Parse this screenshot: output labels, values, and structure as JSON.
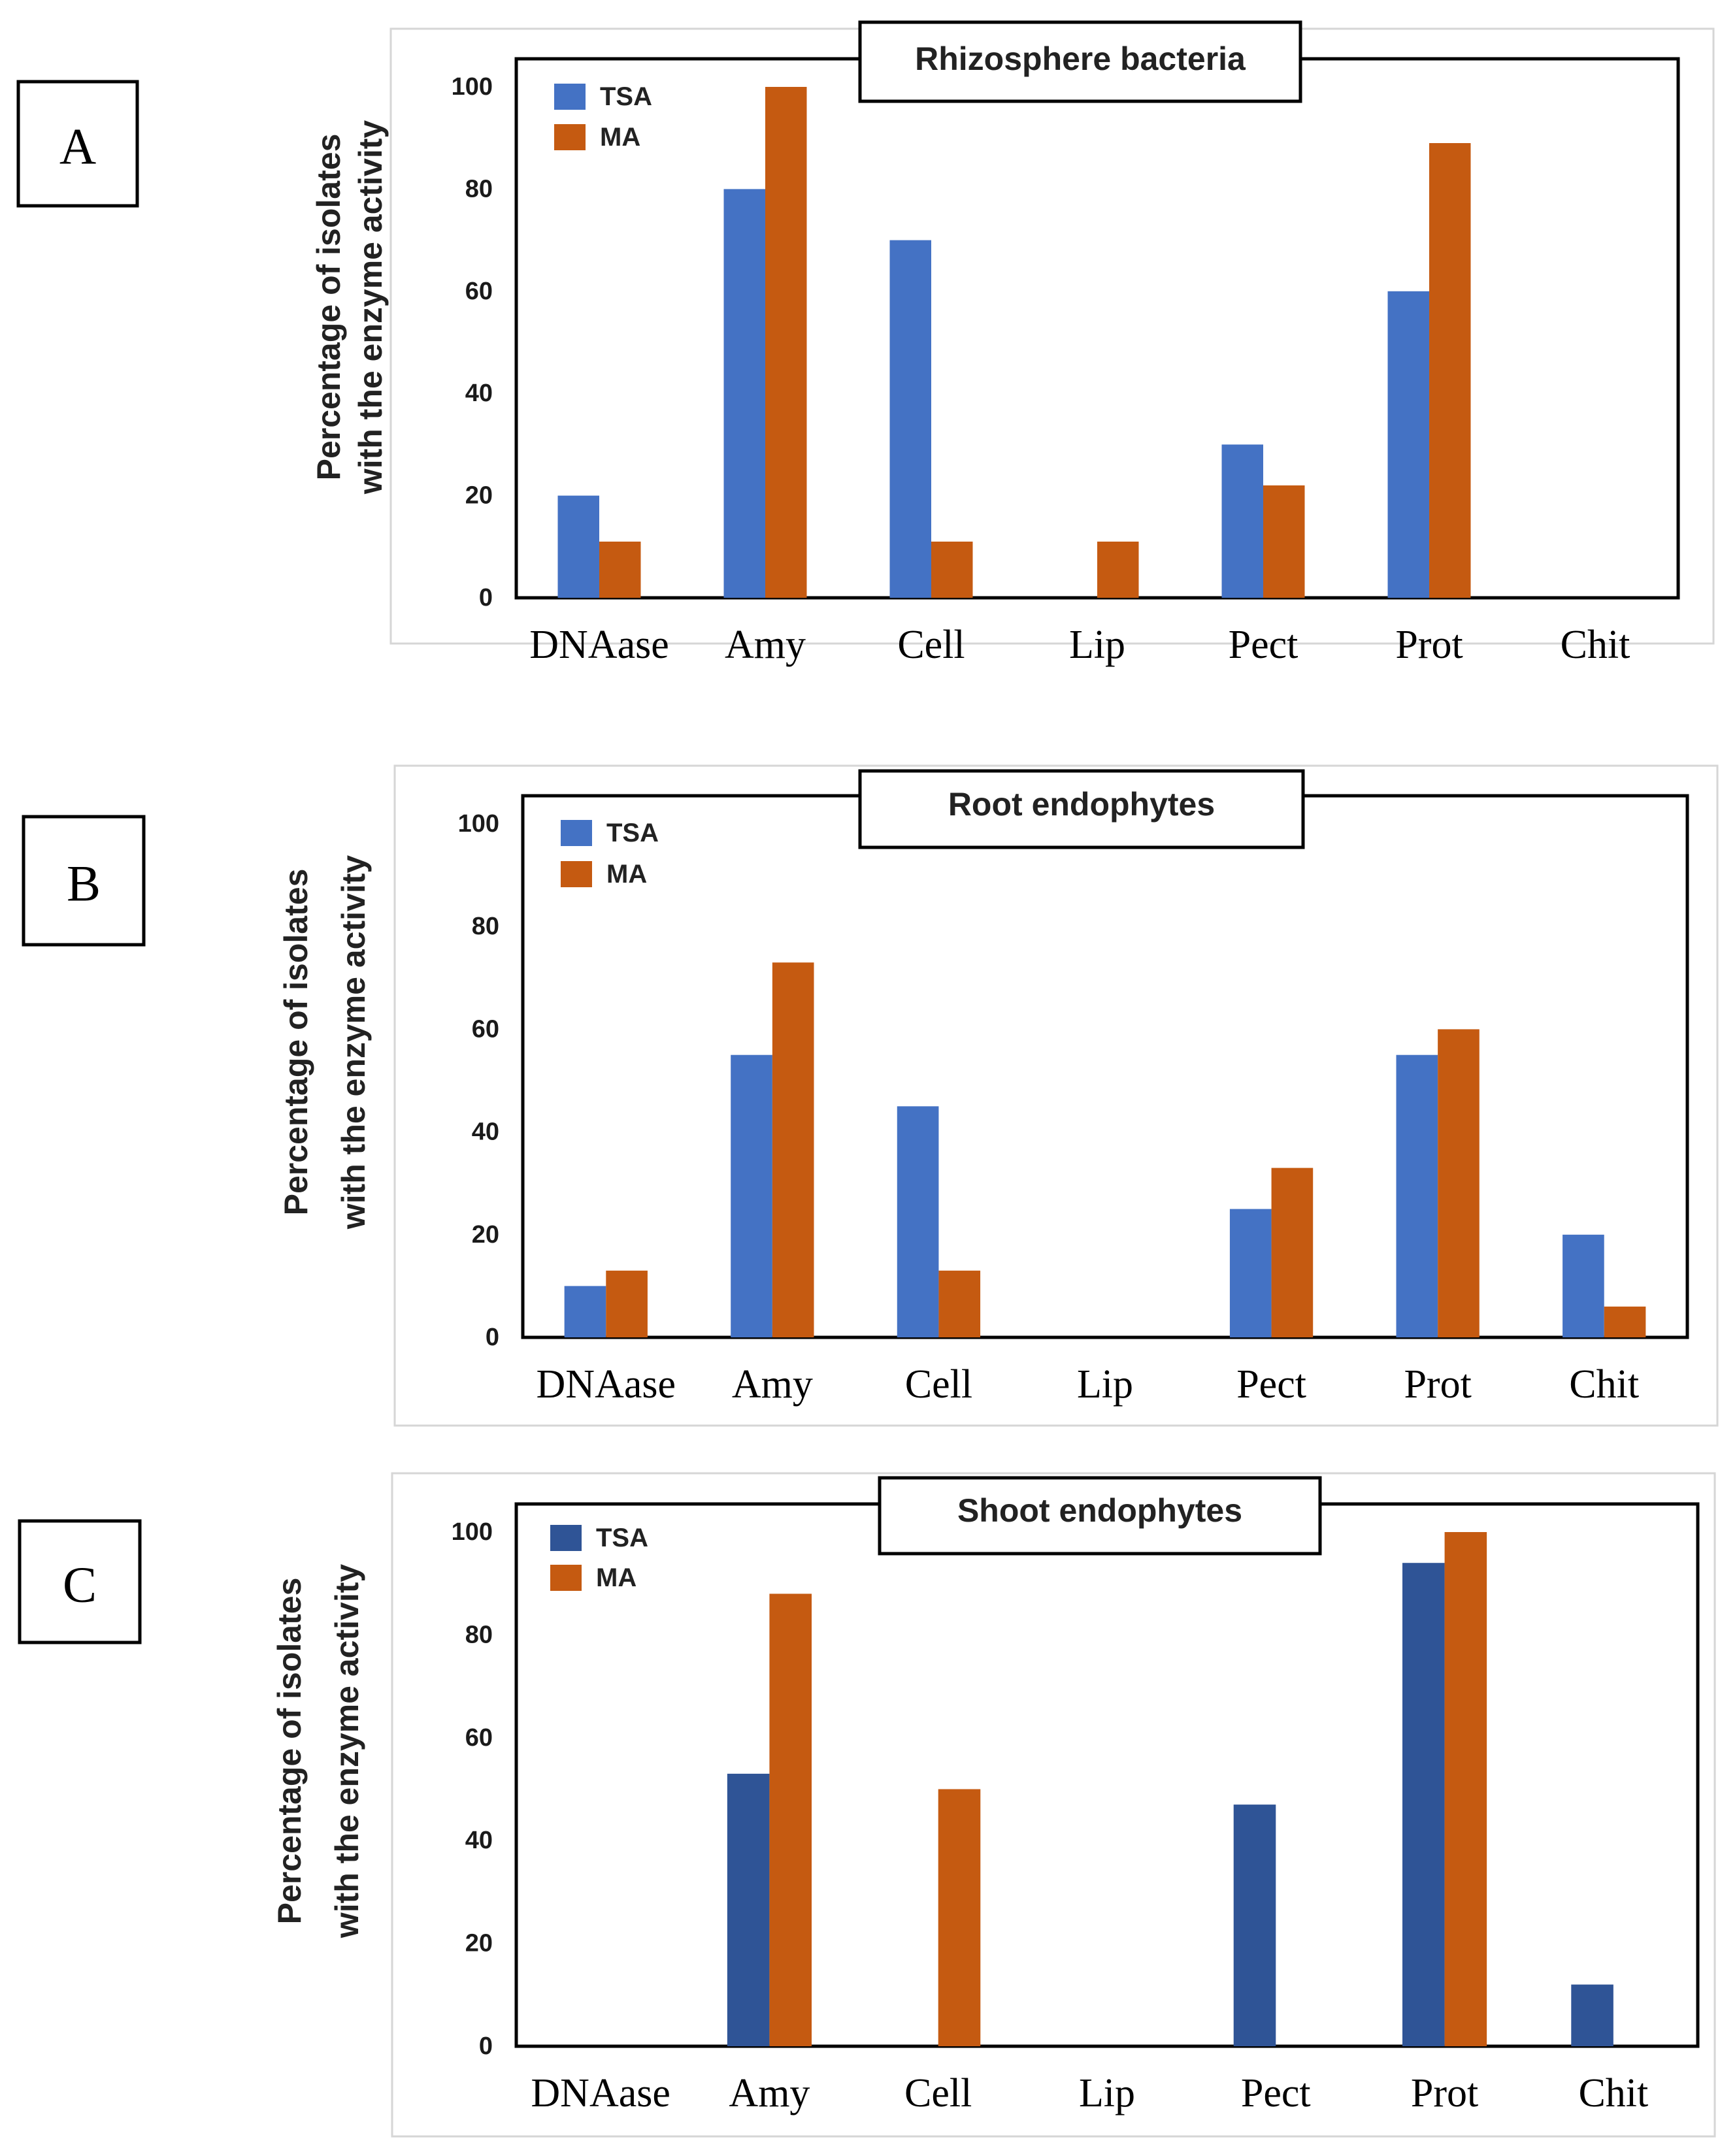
{
  "colors": {
    "tsa": "#4472C4",
    "tsa_dark": "#2F5496",
    "ma": "#C55A11"
  },
  "chart_data": [
    {
      "type": "bar",
      "panel": "A",
      "title": "Rhizosphere bacteria",
      "ylabel_line1": "Percentage of isolates",
      "ylabel_line2": "with the enzyme activity",
      "ylim": [
        0,
        100
      ],
      "yticks": [
        "0",
        "20",
        "40",
        "60",
        "80",
        "100"
      ],
      "categories": [
        "DNAase",
        "Amy",
        "Cell",
        "Lip",
        "Pect",
        "Prot",
        "Chit"
      ],
      "series": [
        {
          "name": "TSA",
          "values": [
            20,
            80,
            70,
            0,
            30,
            60,
            0
          ]
        },
        {
          "name": "MA",
          "values": [
            11,
            100,
            11,
            11,
            22,
            89,
            0
          ]
        }
      ]
    },
    {
      "type": "bar",
      "panel": "B",
      "title": "Root endophytes",
      "ylabel_line1": "Percentage of isolates",
      "ylabel_line2": "with the enzyme activity",
      "ylim": [
        0,
        100
      ],
      "yticks": [
        "0",
        "20",
        "40",
        "60",
        "80",
        "100"
      ],
      "categories": [
        "DNAase",
        "Amy",
        "Cell",
        "Lip",
        "Pect",
        "Prot",
        "Chit"
      ],
      "series": [
        {
          "name": "TSA",
          "values": [
            10,
            55,
            45,
            0,
            25,
            55,
            20
          ]
        },
        {
          "name": "MA",
          "values": [
            13,
            73,
            13,
            0,
            33,
            60,
            6
          ]
        }
      ]
    },
    {
      "type": "bar",
      "panel": "C",
      "title": "Shoot endophytes",
      "ylabel_line1": "Percentage of isolates",
      "ylabel_line2": "with the enzyme activity",
      "ylim": [
        0,
        100
      ],
      "yticks": [
        "0",
        "20",
        "40",
        "60",
        "80",
        "100"
      ],
      "categories": [
        "DNAase",
        "Amy",
        "Cell",
        "Lip",
        "Pect",
        "Prot",
        "Chit"
      ],
      "series": [
        {
          "name": "TSA",
          "values": [
            0,
            53,
            0,
            0,
            47,
            94,
            12
          ]
        },
        {
          "name": "MA",
          "values": [
            0,
            88,
            50,
            0,
            0,
            100,
            0
          ]
        }
      ]
    }
  ]
}
